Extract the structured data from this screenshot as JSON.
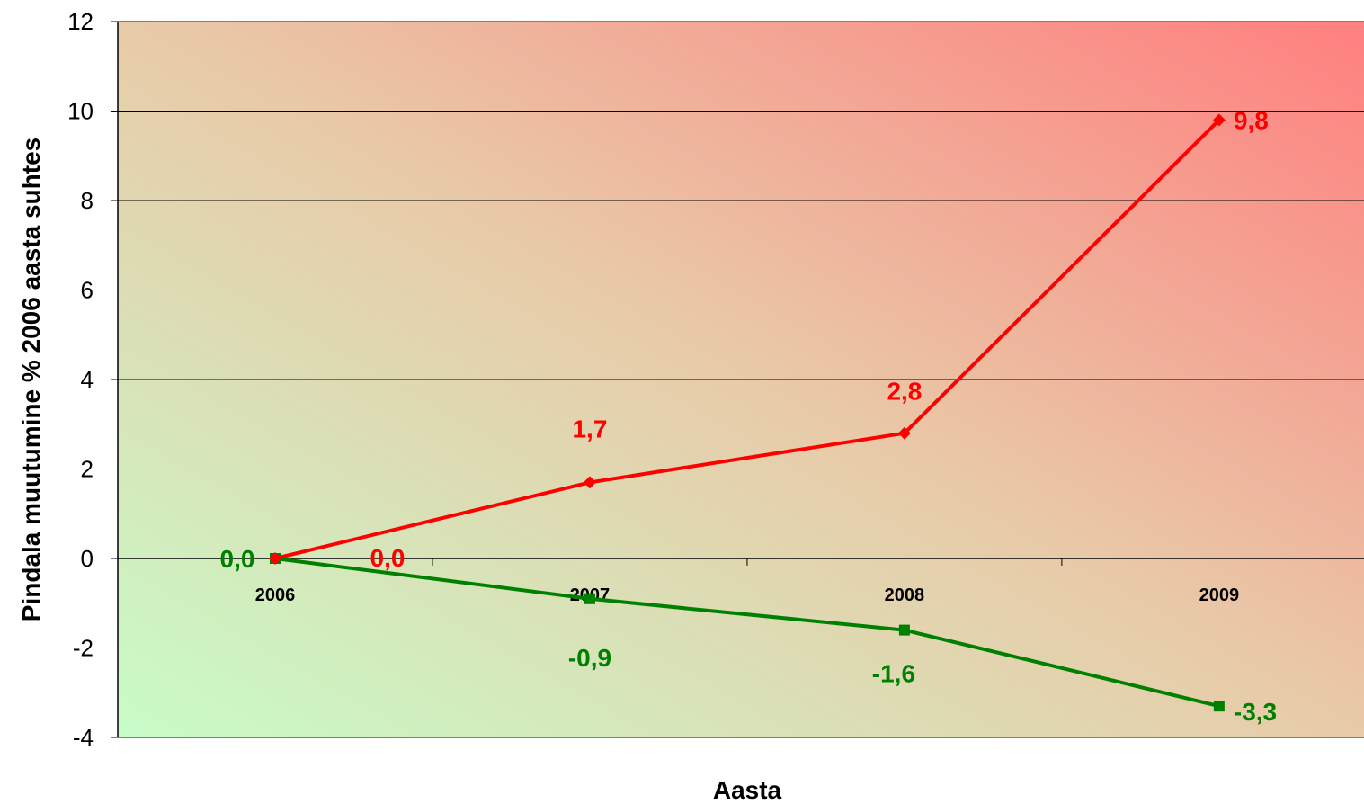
{
  "chart_data": {
    "type": "line",
    "xlabel": "Aasta",
    "ylabel": "Pindala muutumine % 2006 aasta suhtes",
    "categories": [
      "2006",
      "2007",
      "2008",
      "2009"
    ],
    "ylim": [
      -4,
      12
    ],
    "yticks": [
      -4,
      -2,
      0,
      2,
      4,
      6,
      8,
      10,
      12
    ],
    "grid": true,
    "legend": "none",
    "background": "gradient green (bottom-left) to red (top-right)",
    "series": [
      {
        "color": "#ff0000",
        "marker": "diamond",
        "values": [
          0.0,
          1.7,
          2.8,
          9.8
        ],
        "labels": [
          "0,0",
          "1,7",
          "2,8",
          "9,8"
        ]
      },
      {
        "color": "#008000",
        "marker": "square",
        "values": [
          0.0,
          -0.9,
          -1.6,
          -3.3
        ],
        "labels": [
          "0,0",
          "-0,9",
          "-1,6",
          "-3,3"
        ]
      }
    ]
  }
}
